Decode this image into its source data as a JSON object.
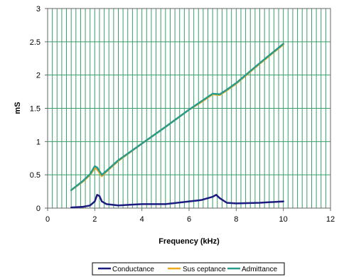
{
  "chart_data": {
    "type": "line",
    "xlabel": "Frequency (kHz)",
    "ylabel": "mS",
    "xlim": [
      0,
      12
    ],
    "ylim": [
      0,
      3
    ],
    "xticks": [
      0,
      2,
      4,
      6,
      8,
      10,
      12
    ],
    "yticks": [
      0,
      0.5,
      1,
      1.5,
      2,
      2.5,
      3
    ],
    "grid": "vertical minor lines every 0.2 kHz, horizontal at y ticks",
    "legend_position": "bottom",
    "colors": {
      "grid": "#3a9e6a",
      "conductance": "#1c1c80",
      "susceptance": "#f0a81c",
      "admittance": "#2a9a8a"
    },
    "series": [
      {
        "name": "Conductance",
        "color": "#1c1c80",
        "x": [
          1.0,
          1.5,
          1.8,
          2.0,
          2.1,
          2.2,
          2.3,
          2.5,
          3.0,
          3.5,
          4.0,
          5.0,
          6.0,
          6.5,
          7.0,
          7.15,
          7.3,
          7.6,
          8.0,
          9.0,
          10.0
        ],
        "y": [
          0.01,
          0.02,
          0.04,
          0.1,
          0.2,
          0.18,
          0.1,
          0.06,
          0.04,
          0.05,
          0.06,
          0.06,
          0.1,
          0.12,
          0.17,
          0.2,
          0.15,
          0.08,
          0.07,
          0.08,
          0.1
        ]
      },
      {
        "name": "Sus ceptance",
        "color": "#f0a81c",
        "x": [
          1.0,
          1.5,
          1.8,
          2.0,
          2.1,
          2.3,
          2.5,
          3.0,
          4.0,
          5.0,
          6.0,
          6.5,
          7.0,
          7.3,
          7.6,
          8.0,
          9.0,
          10.0
        ],
        "y": [
          0.27,
          0.4,
          0.5,
          0.6,
          0.58,
          0.48,
          0.55,
          0.71,
          0.97,
          1.22,
          1.48,
          1.59,
          1.71,
          1.7,
          1.77,
          1.87,
          2.17,
          2.46
        ]
      },
      {
        "name": "Admittance",
        "color": "#2a9a8a",
        "x": [
          1.0,
          1.5,
          1.8,
          2.0,
          2.1,
          2.3,
          2.5,
          3.0,
          4.0,
          5.0,
          6.0,
          6.5,
          7.0,
          7.3,
          7.6,
          8.0,
          9.0,
          10.0
        ],
        "y": [
          0.27,
          0.41,
          0.51,
          0.63,
          0.61,
          0.5,
          0.56,
          0.72,
          0.97,
          1.22,
          1.48,
          1.6,
          1.72,
          1.71,
          1.78,
          1.88,
          2.18,
          2.47
        ]
      }
    ]
  }
}
